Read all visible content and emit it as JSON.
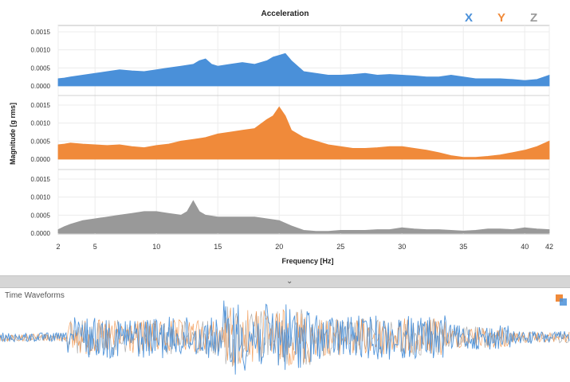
{
  "chart_data": {
    "type": "area",
    "title": "Acceleration",
    "xlabel": "Frequency [Hz]",
    "ylabel": "Magnitude [g rms]",
    "xlim": [
      2,
      42
    ],
    "ylim": [
      0,
      0.0015
    ],
    "x_ticks": [
      "2",
      "5",
      "10",
      "15",
      "20",
      "25",
      "30",
      "35",
      "40",
      "42"
    ],
    "y_ticks": [
      "0.0015",
      "0.0010",
      "0.0005",
      "0.0000"
    ],
    "grid": true,
    "legend_position": "top-right",
    "series": [
      {
        "name": "X",
        "color": "#4a90d9",
        "points": [
          [
            2,
            0.0002
          ],
          [
            2.5,
            0.00022
          ],
          [
            3,
            0.00025
          ],
          [
            4,
            0.0003
          ],
          [
            5,
            0.00035
          ],
          [
            6,
            0.0004
          ],
          [
            7,
            0.00045
          ],
          [
            8,
            0.00042
          ],
          [
            9,
            0.0004
          ],
          [
            10,
            0.00045
          ],
          [
            11,
            0.0005
          ],
          [
            12,
            0.00055
          ],
          [
            13,
            0.0006
          ],
          [
            13.5,
            0.0007
          ],
          [
            14,
            0.00075
          ],
          [
            14.5,
            0.0006
          ],
          [
            15,
            0.00055
          ],
          [
            16,
            0.0006
          ],
          [
            17,
            0.00065
          ],
          [
            18,
            0.0006
          ],
          [
            19,
            0.0007
          ],
          [
            19.5,
            0.0008
          ],
          [
            20,
            0.00085
          ],
          [
            20.5,
            0.0009
          ],
          [
            21,
            0.0007
          ],
          [
            22,
            0.0004
          ],
          [
            23,
            0.00035
          ],
          [
            24,
            0.0003
          ],
          [
            25,
            0.0003
          ],
          [
            26,
            0.00032
          ],
          [
            27,
            0.00035
          ],
          [
            28,
            0.0003
          ],
          [
            29,
            0.00032
          ],
          [
            30,
            0.0003
          ],
          [
            31,
            0.00028
          ],
          [
            32,
            0.00025
          ],
          [
            33,
            0.00025
          ],
          [
            34,
            0.0003
          ],
          [
            35,
            0.00025
          ],
          [
            36,
            0.0002
          ],
          [
            37,
            0.0002
          ],
          [
            38,
            0.0002
          ],
          [
            39,
            0.00018
          ],
          [
            40,
            0.00015
          ],
          [
            41,
            0.00018
          ],
          [
            42,
            0.0003
          ]
        ]
      },
      {
        "name": "Y",
        "color": "#f08a3a",
        "points": [
          [
            2,
            0.0004
          ],
          [
            2.5,
            0.00042
          ],
          [
            3,
            0.00045
          ],
          [
            4,
            0.00042
          ],
          [
            5,
            0.0004
          ],
          [
            6,
            0.00038
          ],
          [
            7,
            0.0004
          ],
          [
            8,
            0.00035
          ],
          [
            9,
            0.00032
          ],
          [
            10,
            0.00038
          ],
          [
            11,
            0.00042
          ],
          [
            12,
            0.0005
          ],
          [
            13,
            0.00055
          ],
          [
            14,
            0.0006
          ],
          [
            15,
            0.0007
          ],
          [
            16,
            0.00075
          ],
          [
            17,
            0.0008
          ],
          [
            18,
            0.00085
          ],
          [
            19,
            0.0011
          ],
          [
            19.5,
            0.0012
          ],
          [
            20,
            0.00145
          ],
          [
            20.5,
            0.0012
          ],
          [
            21,
            0.0008
          ],
          [
            22,
            0.0006
          ],
          [
            23,
            0.0005
          ],
          [
            24,
            0.0004
          ],
          [
            25,
            0.00035
          ],
          [
            26,
            0.0003
          ],
          [
            27,
            0.0003
          ],
          [
            28,
            0.00032
          ],
          [
            29,
            0.00035
          ],
          [
            30,
            0.00035
          ],
          [
            31,
            0.0003
          ],
          [
            32,
            0.00025
          ],
          [
            33,
            0.00018
          ],
          [
            34,
            0.0001
          ],
          [
            35,
            5e-05
          ],
          [
            36,
            5e-05
          ],
          [
            37,
            8e-05
          ],
          [
            38,
            0.00012
          ],
          [
            39,
            0.00018
          ],
          [
            40,
            0.00025
          ],
          [
            41,
            0.00035
          ],
          [
            42,
            0.0005
          ]
        ]
      },
      {
        "name": "Z",
        "color": "#999999",
        "points": [
          [
            2,
            0.0001
          ],
          [
            2.5,
            0.00018
          ],
          [
            3,
            0.00025
          ],
          [
            4,
            0.00035
          ],
          [
            5,
            0.0004
          ],
          [
            6,
            0.00045
          ],
          [
            7,
            0.0005
          ],
          [
            8,
            0.00055
          ],
          [
            9,
            0.0006
          ],
          [
            10,
            0.0006
          ],
          [
            11,
            0.00055
          ],
          [
            12,
            0.0005
          ],
          [
            12.5,
            0.0006
          ],
          [
            13,
            0.0009
          ],
          [
            13.5,
            0.0006
          ],
          [
            14,
            0.0005
          ],
          [
            15,
            0.00045
          ],
          [
            16,
            0.00045
          ],
          [
            17,
            0.00045
          ],
          [
            18,
            0.00045
          ],
          [
            19,
            0.0004
          ],
          [
            20,
            0.00035
          ],
          [
            21,
            0.0002
          ],
          [
            22,
            8e-05
          ],
          [
            23,
            5e-05
          ],
          [
            24,
            5e-05
          ],
          [
            25,
            8e-05
          ],
          [
            26,
            8e-05
          ],
          [
            27,
            8e-05
          ],
          [
            28,
            0.0001
          ],
          [
            29,
            0.0001
          ],
          [
            30,
            0.00015
          ],
          [
            31,
            0.00012
          ],
          [
            32,
            0.0001
          ],
          [
            33,
            0.0001
          ],
          [
            34,
            8e-05
          ],
          [
            35,
            6e-05
          ],
          [
            36,
            8e-05
          ],
          [
            37,
            0.00012
          ],
          [
            38,
            0.00012
          ],
          [
            39,
            0.0001
          ],
          [
            40,
            0.00015
          ],
          [
            41,
            0.00012
          ],
          [
            42,
            0.0001
          ]
        ]
      }
    ]
  },
  "legend": {
    "x_label": "X",
    "y_label": "Y",
    "z_label": "Z",
    "x_color": "#4a90d9",
    "y_color": "#f08a3a",
    "z_color": "#999999"
  },
  "waveform": {
    "title": "Time Waveforms",
    "colors": [
      "#4a90d9",
      "#f08a3a",
      "#999999"
    ]
  },
  "splitter": {
    "chevron": "⌄"
  }
}
